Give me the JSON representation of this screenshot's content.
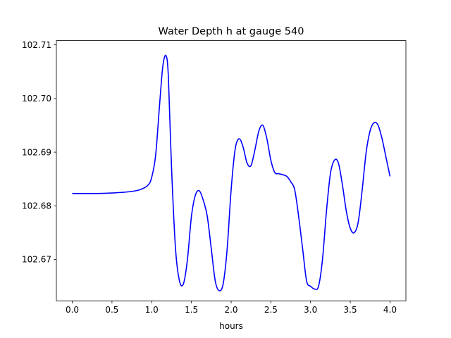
{
  "chart_data": {
    "type": "line",
    "title": "Water Depth h at gauge 540",
    "xlabel": "hours",
    "ylabel": "",
    "xlim": [
      -0.2,
      4.2
    ],
    "ylim": [
      102.6623,
      102.7108
    ],
    "xticks": [
      0.0,
      0.5,
      1.0,
      1.5,
      2.0,
      2.5,
      3.0,
      3.5,
      4.0
    ],
    "xtick_labels": [
      "0.0",
      "0.5",
      "1.0",
      "1.5",
      "2.0",
      "2.5",
      "3.0",
      "3.5",
      "4.0"
    ],
    "yticks": [
      102.67,
      102.68,
      102.69,
      102.7,
      102.71
    ],
    "ytick_labels": [
      "102.67",
      "102.68",
      "102.69",
      "102.70",
      "102.71"
    ],
    "grid": false,
    "series": [
      {
        "color": "#0000ff",
        "x": [
          0.0,
          0.3,
          0.5,
          0.7,
          0.85,
          0.95,
          1.0,
          1.05,
          1.1,
          1.14,
          1.18,
          1.21,
          1.25,
          1.3,
          1.35,
          1.4,
          1.45,
          1.5,
          1.55,
          1.6,
          1.65,
          1.7,
          1.75,
          1.8,
          1.85,
          1.9,
          1.95,
          2.0,
          2.05,
          2.1,
          2.15,
          2.2,
          2.25,
          2.3,
          2.35,
          2.4,
          2.45,
          2.5,
          2.55,
          2.6,
          2.65,
          2.7,
          2.75,
          2.8,
          2.85,
          2.9,
          2.95,
          3.0,
          3.05,
          3.1,
          3.15,
          3.2,
          3.25,
          3.3,
          3.35,
          3.4,
          3.45,
          3.5,
          3.55,
          3.6,
          3.65,
          3.7,
          3.75,
          3.8,
          3.85,
          3.9,
          3.95,
          4.0
        ],
        "y": [
          102.6823,
          102.6823,
          102.6824,
          102.6826,
          102.683,
          102.6838,
          102.6853,
          102.6895,
          102.699,
          102.706,
          102.708,
          102.704,
          102.687,
          102.672,
          102.666,
          102.6655,
          102.67,
          102.678,
          102.682,
          102.6828,
          102.681,
          102.678,
          102.672,
          102.666,
          102.6642,
          102.6655,
          102.672,
          102.683,
          102.6905,
          102.6925,
          102.691,
          102.688,
          102.6875,
          102.6905,
          102.694,
          102.695,
          102.6925,
          102.6885,
          102.6862,
          102.686,
          102.6858,
          102.6855,
          102.6845,
          102.683,
          102.678,
          102.672,
          102.666,
          102.665,
          102.6645,
          102.665,
          102.67,
          102.679,
          102.686,
          102.6885,
          102.688,
          102.684,
          102.679,
          102.6758,
          102.675,
          102.677,
          102.683,
          102.69,
          102.694,
          102.6955,
          102.695,
          102.6925,
          102.689,
          102.6855
        ]
      }
    ]
  }
}
